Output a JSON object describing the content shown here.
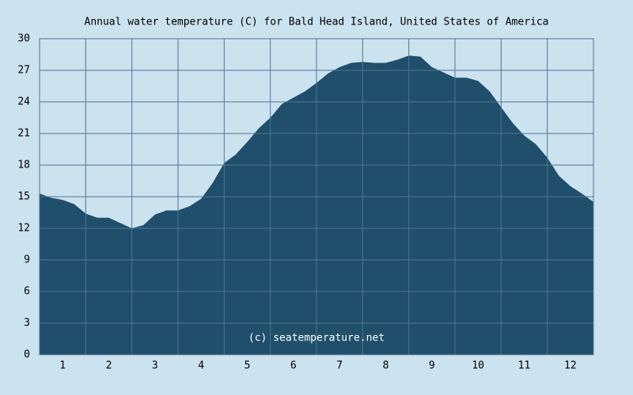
{
  "chart_data": {
    "type": "area",
    "title": "Annual water temperature (C) for Bald Head Island, United States of America",
    "annotation": "(c) seatemperature.net",
    "x": [
      0,
      0.25,
      0.5,
      0.75,
      1,
      1.25,
      1.5,
      1.75,
      2,
      2.25,
      2.5,
      2.75,
      3,
      3.25,
      3.5,
      3.75,
      4,
      4.25,
      4.5,
      4.75,
      5,
      5.25,
      5.5,
      5.75,
      6,
      6.25,
      6.5,
      6.75,
      7,
      7.25,
      7.5,
      7.75,
      8,
      8.25,
      8.5,
      8.75,
      9,
      9.25,
      9.5,
      9.75,
      10,
      10.25,
      10.5,
      10.75,
      11,
      11.25,
      11.5,
      11.75,
      12
    ],
    "values": [
      15.3,
      14.9,
      14.7,
      14.3,
      13.4,
      13.0,
      13.0,
      12.5,
      12.0,
      12.3,
      13.3,
      13.7,
      13.7,
      14.1,
      14.8,
      16.3,
      18.2,
      19.0,
      20.2,
      21.5,
      22.5,
      23.8,
      24.4,
      25.0,
      25.8,
      26.7,
      27.3,
      27.7,
      27.8,
      27.7,
      27.7,
      28.0,
      28.4,
      28.3,
      27.3,
      26.8,
      26.3,
      26.3,
      26.0,
      25.0,
      23.5,
      22.0,
      20.8,
      20.0,
      18.7,
      17.0,
      16.0,
      15.3,
      14.5
    ],
    "color": "#1f4f6b",
    "xlim": [
      0,
      12
    ],
    "xticks": [
      {
        "value": 0.5,
        "label": "1"
      },
      {
        "value": 1.5,
        "label": "2"
      },
      {
        "value": 2.5,
        "label": "3"
      },
      {
        "value": 3.5,
        "label": "4"
      },
      {
        "value": 4.5,
        "label": "5"
      },
      {
        "value": 5.5,
        "label": "6"
      },
      {
        "value": 6.5,
        "label": "7"
      },
      {
        "value": 7.5,
        "label": "8"
      },
      {
        "value": 8.5,
        "label": "9"
      },
      {
        "value": 9.5,
        "label": "10"
      },
      {
        "value": 10.5,
        "label": "11"
      },
      {
        "value": 11.5,
        "label": "12"
      }
    ],
    "ylim": [
      0,
      30
    ],
    "yticks": [
      0,
      3,
      6,
      9,
      12,
      15,
      18,
      21,
      24,
      27,
      30
    ],
    "grid": true
  }
}
